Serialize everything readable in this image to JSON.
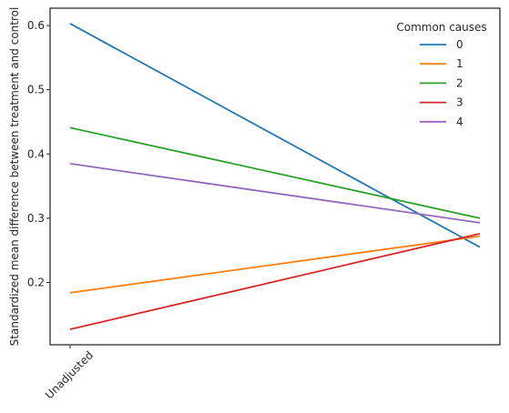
{
  "chart_data": {
    "type": "line",
    "title": "",
    "xlabel": "",
    "ylabel": "Standardized mean difference between treatment and control",
    "x_categories": [
      "Unadjusted",
      ""
    ],
    "xticks_labels": [
      "Unadjusted"
    ],
    "ylim": [
      0.103,
      0.627
    ],
    "yticks": [
      0.2,
      0.3,
      0.4,
      0.5,
      0.6
    ],
    "ytick_labels": [
      "0.2",
      "0.3",
      "0.4",
      "0.5",
      "0.6"
    ],
    "grid": false,
    "legend": {
      "title": "Common causes",
      "placement": "top-right"
    },
    "series": [
      {
        "name": "0",
        "color": "#1f77b4",
        "values": [
          0.603,
          0.255
        ]
      },
      {
        "name": "1",
        "color": "#ff7f0e",
        "values": [
          0.184,
          0.272
        ]
      },
      {
        "name": "2",
        "color": "#2ca02c",
        "values": [
          0.441,
          0.3
        ]
      },
      {
        "name": "3",
        "color": "#d62728",
        "values": [
          0.127,
          0.276
        ]
      },
      {
        "name": "4",
        "color": "#9467bd",
        "values": [
          0.385,
          0.293
        ]
      }
    ]
  }
}
